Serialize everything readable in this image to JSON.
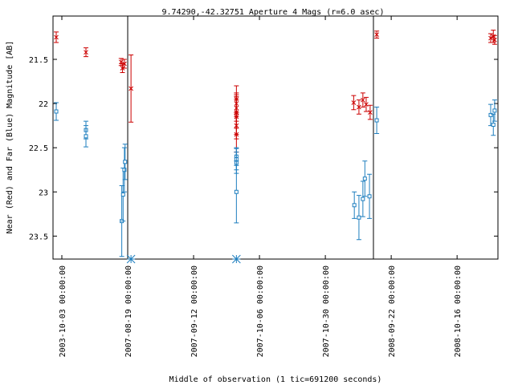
{
  "chart_data": {
    "type": "scatter",
    "title": "9.74290,-42.32751   Aperture 4 Mags (r=6.0 asec)",
    "xlabel": "Middle of observation (1 tic=691200 seconds)",
    "ylabel": "Near (Red) and Far (Blue) Magnitude [AB]",
    "xlim": [
      -0.134,
      6.62
    ],
    "ylim": [
      21.01,
      23.76
    ],
    "y_inverted": true,
    "xticks": [
      {
        "value": 0,
        "label": "2003-10-03 00:00:00"
      },
      {
        "value": 1,
        "label": "2007-08-19 00:00:00"
      },
      {
        "value": 2,
        "label": "2007-09-12 00:00:00"
      },
      {
        "value": 3,
        "label": "2007-10-06 00:00:00"
      },
      {
        "value": 4,
        "label": "2007-10-30 00:00:00"
      },
      {
        "value": 5,
        "label": "2008-09-22 00:00:00"
      },
      {
        "value": 6,
        "label": "2008-10-16 00:00:00"
      }
    ],
    "yticks": [
      21.5,
      22,
      22.5,
      23,
      23.5
    ],
    "separators": [
      1.0,
      4.73
    ],
    "bottom_markers": {
      "color": "#1f7fbf",
      "x": [
        1.05,
        2.65
      ]
    },
    "series": [
      {
        "color": "#cc0000",
        "marker": "cross",
        "x": [
          -0.085,
          0.366,
          0.9,
          0.92,
          0.95,
          1.05,
          2.65,
          2.65,
          2.65,
          2.65,
          2.65,
          2.65,
          2.65,
          4.43,
          4.51,
          4.57,
          4.62,
          4.68,
          4.78,
          6.51,
          6.55,
          6.57
        ],
        "values": [
          21.25,
          21.42,
          21.53,
          21.6,
          21.55,
          21.83,
          21.95,
          22.0,
          22.05,
          22.1,
          22.15,
          22.25,
          22.35,
          21.99,
          22.04,
          21.96,
          22.01,
          22.1,
          21.22,
          21.26,
          21.24,
          21.28
        ],
        "errors": [
          0.06,
          0.05,
          0.04,
          0.05,
          0.05,
          0.38,
          0.15,
          0.12,
          0.15,
          0.18,
          0.2,
          0.15,
          0.2,
          0.08,
          0.08,
          0.08,
          0.08,
          0.08,
          0.04,
          0.05,
          0.07,
          0.05
        ]
      },
      {
        "color": "#1f7fbf",
        "marker": "square",
        "x": [
          -0.085,
          0.366,
          0.366,
          0.91,
          0.93,
          0.95,
          0.96,
          2.65,
          2.65,
          2.65,
          2.65,
          4.44,
          4.51,
          4.57,
          4.6,
          4.67,
          4.78,
          6.51,
          6.55,
          6.57
        ],
        "values": [
          22.09,
          22.3,
          22.37,
          23.33,
          23.03,
          22.75,
          22.66,
          22.6,
          22.63,
          22.67,
          23.0,
          23.15,
          23.29,
          23.08,
          22.85,
          23.05,
          22.19,
          22.13,
          22.24,
          22.08
        ],
        "errors": [
          0.1,
          0.1,
          0.12,
          0.4,
          0.3,
          0.25,
          0.2,
          0.1,
          0.12,
          0.12,
          0.35,
          0.15,
          0.25,
          0.2,
          0.2,
          0.25,
          0.15,
          0.12,
          0.12,
          0.12
        ]
      }
    ]
  }
}
